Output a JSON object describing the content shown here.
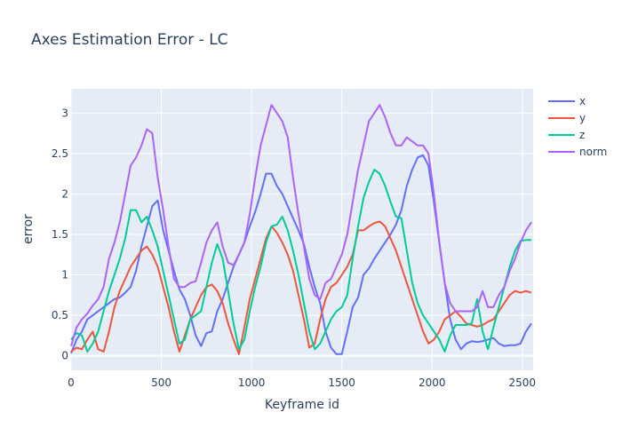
{
  "chart_data": {
    "type": "line",
    "title": "Axes Estimation Error - LC",
    "xlabel": "Keyframe id",
    "ylabel": "error",
    "xlim": [
      0,
      2560
    ],
    "ylim": [
      -0.18,
      3.3
    ],
    "x_ticks": [
      0,
      500,
      1000,
      1500,
      2000,
      2500
    ],
    "y_ticks": [
      0,
      0.5,
      1,
      1.5,
      2,
      2.5,
      3
    ],
    "grid": true,
    "legend_position": "top-right",
    "background": "#e5ecf6",
    "series": [
      {
        "name": "x",
        "color": "#636efa",
        "x": [
          0,
          30,
          60,
          90,
          120,
          150,
          180,
          210,
          240,
          270,
          300,
          330,
          360,
          390,
          420,
          450,
          480,
          510,
          540,
          570,
          600,
          630,
          660,
          690,
          720,
          750,
          780,
          810,
          840,
          870,
          900,
          930,
          960,
          990,
          1020,
          1050,
          1080,
          1110,
          1140,
          1170,
          1200,
          1230,
          1260,
          1290,
          1320,
          1350,
          1380,
          1410,
          1440,
          1470,
          1500,
          1530,
          1560,
          1590,
          1620,
          1650,
          1680,
          1710,
          1740,
          1770,
          1800,
          1830,
          1860,
          1890,
          1920,
          1950,
          1980,
          2010,
          2040,
          2070,
          2100,
          2130,
          2160,
          2190,
          2220,
          2250,
          2280,
          2310,
          2340,
          2370,
          2400,
          2430,
          2460,
          2490,
          2520,
          2550
        ],
        "values": [
          0.03,
          0.2,
          0.3,
          0.45,
          0.5,
          0.55,
          0.6,
          0.65,
          0.7,
          0.72,
          0.78,
          0.85,
          1.05,
          1.35,
          1.6,
          1.85,
          1.92,
          1.55,
          1.3,
          1.05,
          0.82,
          0.7,
          0.5,
          0.25,
          0.12,
          0.28,
          0.3,
          0.55,
          0.7,
          0.9,
          1.1,
          1.25,
          1.4,
          1.6,
          1.78,
          2.0,
          2.25,
          2.25,
          2.1,
          2.0,
          1.85,
          1.7,
          1.55,
          1.38,
          1.1,
          0.85,
          0.65,
          0.3,
          0.1,
          0.02,
          0.02,
          0.3,
          0.6,
          0.72,
          1.0,
          1.08,
          1.2,
          1.3,
          1.4,
          1.5,
          1.62,
          1.8,
          2.1,
          2.3,
          2.45,
          2.48,
          2.35,
          1.9,
          1.4,
          0.9,
          0.45,
          0.2,
          0.08,
          0.15,
          0.18,
          0.17,
          0.18,
          0.2,
          0.22,
          0.15,
          0.12,
          0.13,
          0.13,
          0.15,
          0.3,
          0.4
        ]
      },
      {
        "name": "y",
        "color": "#ef553b",
        "x": [
          0,
          30,
          60,
          90,
          120,
          150,
          180,
          210,
          240,
          270,
          300,
          330,
          360,
          390,
          420,
          450,
          480,
          510,
          540,
          570,
          600,
          630,
          660,
          690,
          720,
          750,
          780,
          810,
          840,
          870,
          900,
          930,
          960,
          990,
          1020,
          1050,
          1080,
          1110,
          1140,
          1170,
          1200,
          1230,
          1260,
          1290,
          1320,
          1350,
          1380,
          1410,
          1440,
          1470,
          1500,
          1530,
          1560,
          1590,
          1620,
          1650,
          1680,
          1710,
          1740,
          1770,
          1800,
          1830,
          1860,
          1890,
          1920,
          1950,
          1980,
          2010,
          2040,
          2070,
          2100,
          2130,
          2160,
          2190,
          2220,
          2250,
          2280,
          2310,
          2340,
          2370,
          2400,
          2430,
          2460,
          2490,
          2520,
          2550
        ],
        "values": [
          0.05,
          0.1,
          0.08,
          0.2,
          0.3,
          0.08,
          0.05,
          0.3,
          0.6,
          0.8,
          0.95,
          1.1,
          1.2,
          1.3,
          1.35,
          1.25,
          1.1,
          0.85,
          0.6,
          0.3,
          0.05,
          0.25,
          0.45,
          0.6,
          0.75,
          0.85,
          0.88,
          0.8,
          0.65,
          0.4,
          0.2,
          0.02,
          0.35,
          0.7,
          0.95,
          1.2,
          1.45,
          1.6,
          1.52,
          1.4,
          1.25,
          1.05,
          0.75,
          0.45,
          0.1,
          0.15,
          0.45,
          0.7,
          0.85,
          0.9,
          1.0,
          1.1,
          1.25,
          1.55,
          1.55,
          1.6,
          1.64,
          1.66,
          1.6,
          1.45,
          1.3,
          1.1,
          0.9,
          0.7,
          0.5,
          0.3,
          0.15,
          0.2,
          0.3,
          0.45,
          0.5,
          0.55,
          0.48,
          0.4,
          0.38,
          0.36,
          0.38,
          0.42,
          0.45,
          0.55,
          0.65,
          0.75,
          0.8,
          0.78,
          0.8,
          0.78
        ]
      },
      {
        "name": "z",
        "color": "#00cc96",
        "x": [
          0,
          30,
          60,
          90,
          120,
          150,
          180,
          210,
          240,
          270,
          300,
          330,
          360,
          390,
          420,
          450,
          480,
          510,
          540,
          570,
          600,
          630,
          660,
          690,
          720,
          750,
          780,
          810,
          840,
          870,
          900,
          930,
          960,
          990,
          1020,
          1050,
          1080,
          1110,
          1140,
          1170,
          1200,
          1230,
          1260,
          1290,
          1320,
          1350,
          1380,
          1410,
          1440,
          1470,
          1500,
          1530,
          1560,
          1590,
          1620,
          1650,
          1680,
          1710,
          1740,
          1770,
          1800,
          1830,
          1860,
          1890,
          1920,
          1950,
          1980,
          2010,
          2040,
          2070,
          2100,
          2130,
          2160,
          2190,
          2220,
          2250,
          2280,
          2310,
          2340,
          2370,
          2400,
          2430,
          2460,
          2490,
          2520,
          2550
        ],
        "values": [
          0.2,
          0.28,
          0.25,
          0.05,
          0.15,
          0.3,
          0.55,
          0.8,
          1.0,
          1.2,
          1.45,
          1.8,
          1.8,
          1.65,
          1.72,
          1.55,
          1.35,
          1.05,
          0.75,
          0.45,
          0.15,
          0.2,
          0.45,
          0.5,
          0.55,
          0.85,
          1.15,
          1.38,
          1.2,
          0.8,
          0.4,
          0.08,
          0.2,
          0.55,
          0.85,
          1.1,
          1.4,
          1.6,
          1.62,
          1.72,
          1.55,
          1.3,
          1.0,
          0.65,
          0.3,
          0.08,
          0.15,
          0.3,
          0.45,
          0.55,
          0.6,
          0.75,
          1.2,
          1.6,
          1.95,
          2.15,
          2.3,
          2.25,
          2.1,
          1.9,
          1.72,
          1.7,
          1.3,
          0.9,
          0.65,
          0.5,
          0.4,
          0.3,
          0.2,
          0.05,
          0.25,
          0.38,
          0.38,
          0.38,
          0.4,
          0.7,
          0.3,
          0.08,
          0.35,
          0.6,
          0.85,
          1.1,
          1.3,
          1.42,
          1.43,
          1.43
        ]
      },
      {
        "name": "norm",
        "color": "#ab63fa",
        "x": [
          0,
          30,
          60,
          90,
          120,
          150,
          180,
          210,
          240,
          270,
          300,
          330,
          360,
          390,
          420,
          450,
          480,
          510,
          540,
          570,
          600,
          630,
          660,
          690,
          720,
          750,
          780,
          810,
          840,
          870,
          900,
          930,
          960,
          990,
          1020,
          1050,
          1080,
          1110,
          1140,
          1170,
          1200,
          1230,
          1260,
          1290,
          1320,
          1350,
          1380,
          1410,
          1440,
          1470,
          1500,
          1530,
          1560,
          1590,
          1620,
          1650,
          1680,
          1710,
          1740,
          1770,
          1800,
          1830,
          1860,
          1890,
          1920,
          1950,
          1980,
          2010,
          2040,
          2070,
          2100,
          2130,
          2160,
          2190,
          2220,
          2250,
          2280,
          2310,
          2340,
          2370,
          2400,
          2430,
          2460,
          2490,
          2520,
          2550
        ],
        "values": [
          0.12,
          0.35,
          0.45,
          0.52,
          0.62,
          0.7,
          0.85,
          1.2,
          1.4,
          1.65,
          2.0,
          2.35,
          2.45,
          2.6,
          2.8,
          2.75,
          2.2,
          1.8,
          1.35,
          0.95,
          0.85,
          0.85,
          0.9,
          0.92,
          1.15,
          1.4,
          1.55,
          1.65,
          1.35,
          1.15,
          1.12,
          1.25,
          1.4,
          1.75,
          2.2,
          2.6,
          2.85,
          3.1,
          3.0,
          2.9,
          2.7,
          2.2,
          1.75,
          1.35,
          0.95,
          0.75,
          0.7,
          0.9,
          0.95,
          1.1,
          1.25,
          1.5,
          1.9,
          2.3,
          2.6,
          2.9,
          3.0,
          3.1,
          2.95,
          2.75,
          2.6,
          2.6,
          2.7,
          2.65,
          2.6,
          2.6,
          2.5,
          2.0,
          1.4,
          0.9,
          0.65,
          0.55,
          0.55,
          0.55,
          0.55,
          0.6,
          0.8,
          0.6,
          0.6,
          0.75,
          0.85,
          1.05,
          1.2,
          1.4,
          1.55,
          1.65
        ]
      }
    ]
  }
}
